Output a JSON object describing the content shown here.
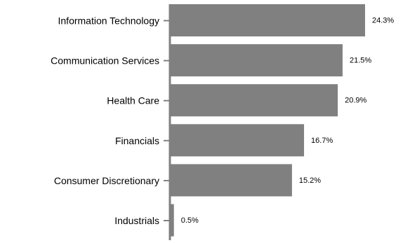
{
  "chart_data": {
    "type": "bar",
    "orientation": "horizontal",
    "title": "",
    "xlabel": "",
    "ylabel": "",
    "categories": [
      "Information Technology",
      "Communication Services",
      "Health Care",
      "Financials",
      "Consumer Discretionary",
      "Industrials"
    ],
    "values": [
      24.3,
      21.5,
      20.9,
      16.7,
      15.2,
      0.5
    ],
    "value_labels": [
      "24.3%",
      "21.5%",
      "20.9%",
      "16.7%",
      "15.2%",
      "0.5%"
    ],
    "xlim": [
      0,
      25
    ],
    "grid": false,
    "legend": "none",
    "colors": {
      "bar": "#808080",
      "axis": "#808080",
      "text": "#000000"
    }
  }
}
